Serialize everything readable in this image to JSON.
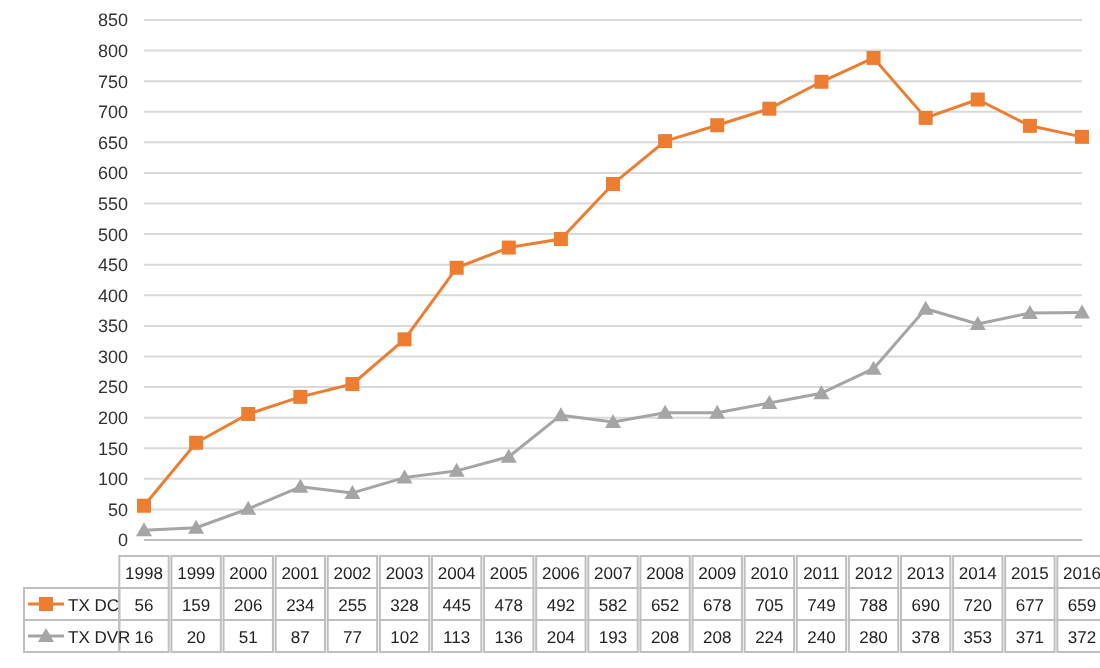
{
  "chart_data": {
    "type": "line",
    "categories": [
      "1998",
      "1999",
      "2000",
      "2001",
      "2002",
      "2003",
      "2004",
      "2005",
      "2006",
      "2007",
      "2008",
      "2009",
      "2010",
      "2011",
      "2012",
      "2013",
      "2014",
      "2015",
      "2016"
    ],
    "series": [
      {
        "name": "TX DC",
        "color": "#ed7d31",
        "marker": "square",
        "values": [
          56,
          159,
          206,
          234,
          255,
          328,
          445,
          478,
          492,
          582,
          652,
          678,
          705,
          749,
          788,
          690,
          720,
          677,
          659
        ]
      },
      {
        "name": "TX DVR",
        "color": "#a5a5a5",
        "marker": "triangle",
        "values": [
          16,
          20,
          51,
          87,
          77,
          102,
          113,
          136,
          204,
          193,
          208,
          208,
          224,
          240,
          280,
          378,
          353,
          371,
          372
        ]
      }
    ],
    "ylim": [
      0,
      850
    ],
    "yticks": [
      0,
      50,
      100,
      150,
      200,
      250,
      300,
      350,
      400,
      450,
      500,
      550,
      600,
      650,
      700,
      750,
      800,
      850
    ],
    "grid": "y",
    "legend": "bottom",
    "data_labels": true
  }
}
